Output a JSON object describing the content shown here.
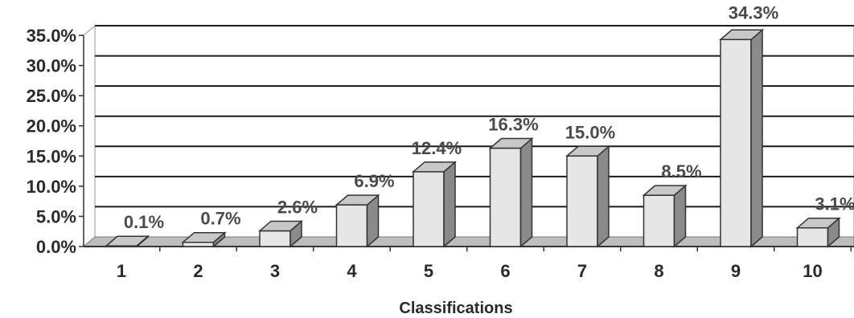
{
  "chart_data": {
    "type": "bar",
    "style": "3d-column",
    "categories": [
      "1",
      "2",
      "3",
      "4",
      "5",
      "6",
      "7",
      "8",
      "9",
      "10"
    ],
    "values": [
      0.1,
      0.7,
      2.6,
      6.9,
      12.4,
      16.3,
      15.0,
      8.5,
      34.3,
      3.1
    ],
    "data_labels": [
      "0.1%",
      "0.7%",
      "2.6%",
      "6.9%",
      "12.4%",
      "16.3%",
      "15.0%",
      "8.5%",
      "34.3%",
      "3.1%"
    ],
    "ylim": [
      0,
      35
    ],
    "y_ticks": [
      0,
      5,
      10,
      15,
      20,
      25,
      30,
      35
    ],
    "y_tick_labels": [
      "0.0%",
      "5.0%",
      "10.0%",
      "15.0%",
      "20.0%",
      "25.0%",
      "30.0%",
      "35.0%"
    ],
    "xlabel": "Classifications",
    "ylabel": "",
    "grid": true,
    "legend": "none",
    "colors": {
      "bar_front": "#e6e6e6",
      "bar_side": "#8a8a8a",
      "bar_top": "#c8c8c8",
      "gridline": "#1a1a1a",
      "floor": "#bdbdbd"
    }
  }
}
